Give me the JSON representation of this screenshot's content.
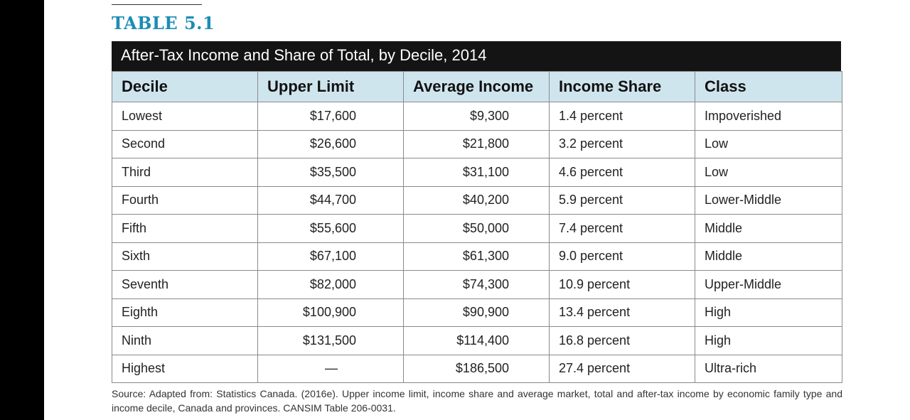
{
  "table_label": "TABLE 5.1",
  "caption": "After-Tax Income and Share of Total, by Decile, 2014",
  "headers": [
    "Decile",
    "Upper Limit",
    "Average Income",
    "Income Share",
    "Class"
  ],
  "rows": [
    [
      "Lowest",
      "$17,600",
      "$9,300",
      "1.4 percent",
      "Impoverished"
    ],
    [
      "Second",
      "$26,600",
      "$21,800",
      "3.2 percent",
      "Low"
    ],
    [
      "Third",
      "$35,500",
      "$31,100",
      "4.6 percent",
      "Low"
    ],
    [
      "Fourth",
      "$44,700",
      "$40,200",
      "5.9 percent",
      "Lower-Middle"
    ],
    [
      "Fifth",
      "$55,600",
      "$50,000",
      "7.4 percent",
      "Middle"
    ],
    [
      "Sixth",
      "$67,100",
      "$61,300",
      "9.0 percent",
      "Middle"
    ],
    [
      "Seventh",
      "$82,000",
      "$74,300",
      "10.9 percent",
      "Upper-Middle"
    ],
    [
      "Eighth",
      "$100,900",
      "$90,900",
      "13.4 percent",
      "High"
    ],
    [
      "Ninth",
      "$131,500",
      "$114,400",
      "16.8 percent",
      "High"
    ],
    [
      "Highest",
      "—",
      "$186,500",
      "27.4 percent",
      "Ultra-rich"
    ]
  ],
  "source": "Source: Adapted from: Statistics Canada. (2016e). Upper income limit, income share and average market, total and after-tax income by economic family type and income decile, Canada and provinces. CANSIM Table 206-0031.",
  "colors": {
    "label": "#1b8db5",
    "caption_bg": "#141414",
    "header_bg": "#cfe5ee"
  }
}
